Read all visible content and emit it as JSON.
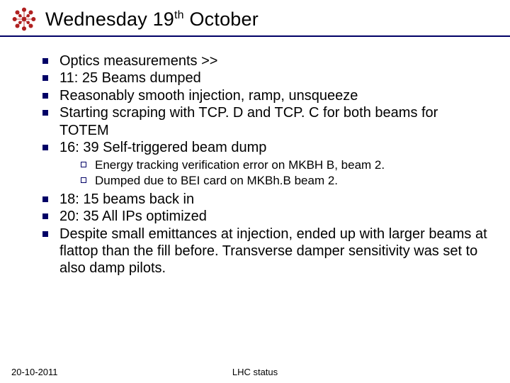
{
  "colors": {
    "accent": "#000066",
    "text": "#000000",
    "background": "#ffffff",
    "logo_dot": "#b02020"
  },
  "title_html": "Wednesday 19<sup>th</sup> October",
  "bullets1": [
    "Optics measurements >>",
    "11: 25 Beams dumped",
    "Reasonably smooth injection, ramp, unsqueeze",
    "Starting scraping with TCP. D and TCP. C for both beams for TOTEM",
    "16: 39 Self-triggered beam dump"
  ],
  "sub_bullets": [
    "Energy tracking verification error on MKBH B, beam 2.",
    "Dumped due to BEI card on MKBh.B beam 2."
  ],
  "bullets2": [
    "18: 15 beams back in",
    "20: 35 All IPs optimized",
    "Despite small emittances at injection, ended up with larger beams at flattop than the fill before. Transverse damper sensitivity was set to also damp pilots."
  ],
  "footer": {
    "left": "20-10-2011",
    "center": "LHC status"
  },
  "typography": {
    "title_fontsize": 27,
    "bullet_fontsize": 20,
    "sub_bullet_fontsize": 17,
    "footer_fontsize": 13
  }
}
